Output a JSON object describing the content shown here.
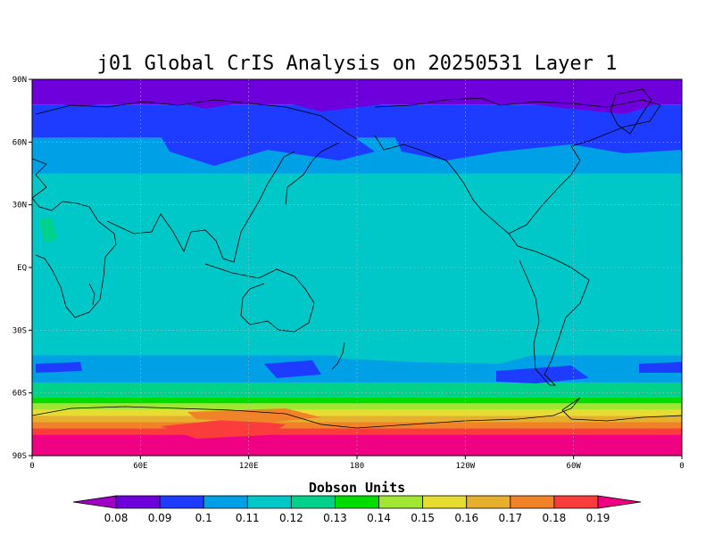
{
  "chart_data": {
    "type": "heatmap",
    "title": "j01 Global CrIS Analysis on 20250531 Layer 1",
    "colorbar_title": "Dobson Units",
    "y_ticks": [
      "90N",
      "60N",
      "30N",
      "EQ",
      "30S",
      "60S",
      "90S"
    ],
    "x_ticks": [
      "0",
      "60E",
      "120E",
      "180",
      "120W",
      "60W",
      "0"
    ],
    "colorbar": {
      "levels": [
        "0.08",
        "0.09",
        "0.1",
        "0.11",
        "0.12",
        "0.13",
        "0.14",
        "0.15",
        "0.16",
        "0.17",
        "0.18",
        "0.19"
      ],
      "colors": [
        "#a000c8",
        "#6e00dc",
        "#1e3cff",
        "#00a0e6",
        "#00c8c8",
        "#00d28c",
        "#00dc00",
        "#a0e632",
        "#e6dc32",
        "#e6af2d",
        "#f08228",
        "#fa3c3c",
        "#f00082"
      ]
    },
    "grid": "dotted",
    "lat_bands": [
      {
        "lat": [
          90,
          78
        ],
        "value": 0.085
      },
      {
        "lat": [
          78,
          62
        ],
        "value": 0.095
      },
      {
        "lat": [
          62,
          45
        ],
        "value": 0.105
      },
      {
        "lat": [
          45,
          -42
        ],
        "value": 0.11
      },
      {
        "lat": [
          -42,
          -55
        ],
        "value": 0.105
      },
      {
        "lat": [
          -55,
          -62
        ],
        "value": 0.12
      },
      {
        "lat": [
          -62,
          -65
        ],
        "value": 0.135
      },
      {
        "lat": [
          -65,
          -68
        ],
        "value": 0.145
      },
      {
        "lat": [
          -68,
          -71
        ],
        "value": 0.155
      },
      {
        "lat": [
          -71,
          -74
        ],
        "value": 0.165
      },
      {
        "lat": [
          -74,
          -77
        ],
        "value": 0.175
      },
      {
        "lat": [
          -77,
          -80
        ],
        "value": 0.185
      },
      {
        "lat": [
          -80,
          -90
        ],
        "value": 0.195
      }
    ]
  }
}
